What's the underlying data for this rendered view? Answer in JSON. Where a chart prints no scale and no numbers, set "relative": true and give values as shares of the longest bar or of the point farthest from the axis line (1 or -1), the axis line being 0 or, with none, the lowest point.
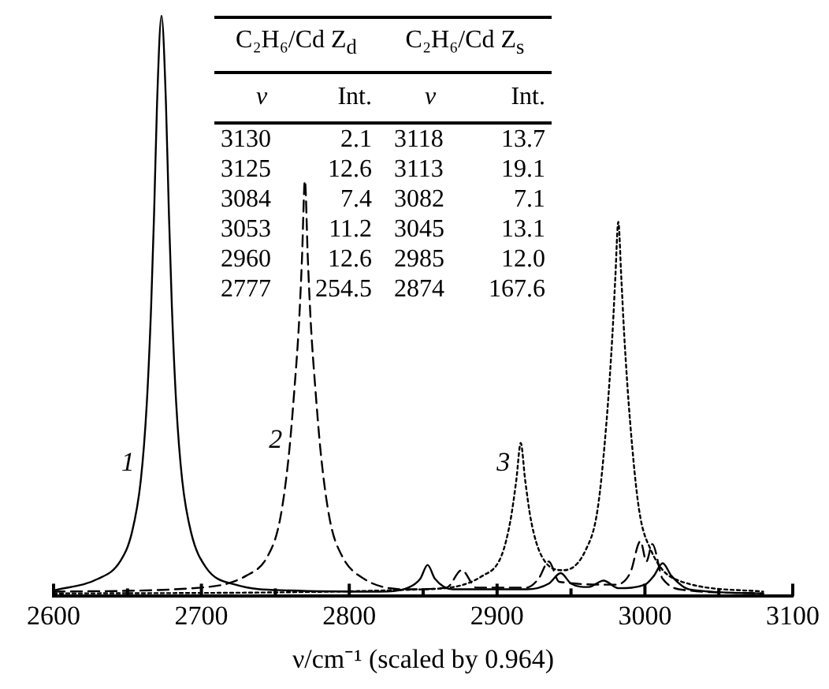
{
  "chart_data": {
    "type": "line",
    "relative": true,
    "xlabel": "ν/cm⁻¹ (scaled by 0.964)",
    "xlim": [
      2600,
      3100
    ],
    "xticks": [
      2600,
      {
        "value": 2650,
        "label": null
      },
      2700,
      {
        "value": 2750,
        "label": null
      },
      2800,
      {
        "value": 2850,
        "label": null
      },
      2900,
      {
        "value": 2950,
        "label": null
      },
      3000,
      {
        "value": 3050,
        "label": null
      },
      3100
    ],
    "grid": false,
    "legend": false,
    "marker": "none",
    "series": [
      {
        "name": "1",
        "color": "#000000",
        "line_style": "solid",
        "x": [
          2600,
          2630,
          2645,
          2653,
          2659,
          2663,
          2666,
          2668,
          2670,
          2673,
          2676,
          2678,
          2680,
          2683,
          2687,
          2693,
          2703,
          2723,
          2760,
          2820,
          2840,
          2848,
          2853,
          2858,
          2870,
          2920,
          2935,
          2943,
          2950,
          2962,
          2972,
          2982,
          3000,
          3006,
          3012,
          3018,
          3030,
          3080
        ],
        "values": [
          0.01,
          0.03,
          0.06,
          0.11,
          0.2,
          0.33,
          0.5,
          0.66,
          0.85,
          1,
          0.85,
          0.66,
          0.5,
          0.33,
          0.2,
          0.11,
          0.05,
          0.02,
          0.01,
          0.008,
          0.015,
          0.03,
          0.054,
          0.03,
          0.012,
          0.012,
          0.022,
          0.04,
          0.022,
          0.016,
          0.027,
          0.014,
          0.02,
          0.035,
          0.057,
          0.035,
          0.012,
          0.005
        ]
      },
      {
        "name": "2",
        "color": "#000000",
        "line_style": "dashed",
        "x": [
          2600,
          2700,
          2730,
          2745,
          2753,
          2759,
          2763,
          2766,
          2768,
          2770,
          2772,
          2774,
          2777,
          2781,
          2787,
          2795,
          2810,
          2840,
          2866,
          2876,
          2886,
          2920,
          2928,
          2935,
          2942,
          2980,
          2990,
          2997,
          3001,
          3005,
          3012,
          3030,
          3080
        ],
        "values": [
          0.008,
          0.015,
          0.035,
          0.07,
          0.13,
          0.24,
          0.36,
          0.47,
          0.58,
          0.716,
          0.58,
          0.47,
          0.36,
          0.24,
          0.13,
          0.07,
          0.03,
          0.012,
          0.015,
          0.045,
          0.015,
          0.015,
          0.03,
          0.06,
          0.025,
          0.02,
          0.04,
          0.095,
          0.06,
          0.09,
          0.03,
          0.01,
          0.005
        ]
      },
      {
        "name": "3",
        "color": "#000000",
        "line_style": "dotted",
        "x": [
          2600,
          2850,
          2890,
          2903,
          2909,
          2913,
          2916,
          2919,
          2923,
          2930,
          2945,
          2960,
          2968,
          2974,
          2978,
          2980,
          2982,
          2984,
          2986,
          2990,
          2996,
          3004,
          3020,
          3080
        ],
        "values": [
          0.005,
          0.012,
          0.035,
          0.07,
          0.13,
          0.2,
          0.264,
          0.2,
          0.13,
          0.07,
          0.045,
          0.08,
          0.15,
          0.3,
          0.45,
          0.55,
          0.645,
          0.55,
          0.45,
          0.3,
          0.15,
          0.08,
          0.03,
          0.008
        ]
      }
    ],
    "annotations": [
      "C₂H₆/Cd Z$_{d}$",
      "C₂H₆/Cd Z$_{s}$",
      "ν",
      "Int.",
      "ν",
      "Int.",
      "3130",
      "2.1",
      "3118",
      "13.7",
      "3125",
      "12.6",
      "3113",
      "19.1",
      "3084",
      "7.4",
      "3082",
      "7.1",
      "3053",
      "11.2",
      "3045",
      "13.1",
      "2960",
      "12.6",
      "2985",
      "12.0",
      "2777",
      "254.5",
      "2874",
      "167.6"
    ]
  }
}
